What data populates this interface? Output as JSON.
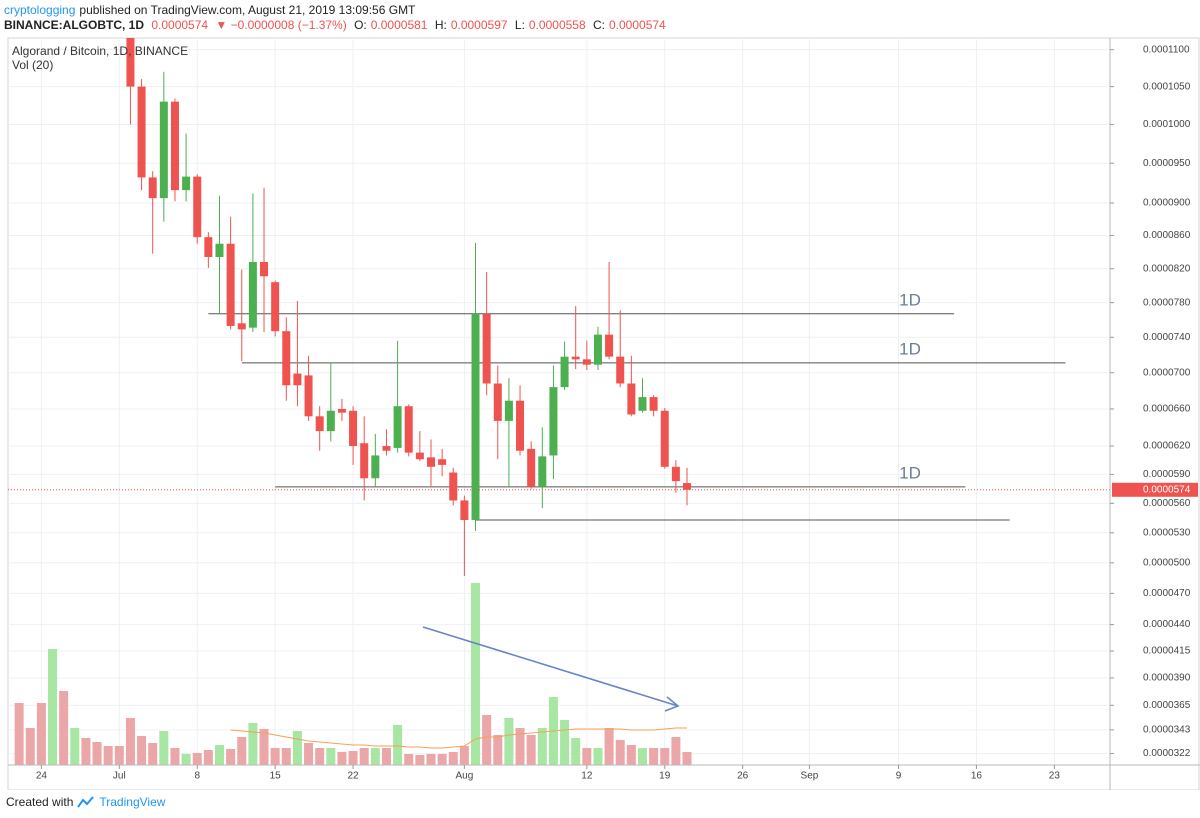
{
  "header": {
    "author": "cryptologging",
    "published": "published on TradingView.com, August 21, 2019 13:09:56 GMT",
    "symbol": "BINANCE:ALGOBTC, 1D",
    "last": "0.0000574",
    "change": "▼ −0.0000008 (−1.37%)",
    "ohlc": [
      {
        "key": "O:",
        "value": "0.0000581"
      },
      {
        "key": "H:",
        "value": "0.0000597"
      },
      {
        "key": "L:",
        "value": "0.0000558"
      },
      {
        "key": "C:",
        "value": "0.0000574"
      }
    ]
  },
  "footer": {
    "text": "Created with",
    "brand": "TradingView"
  },
  "chart_data": {
    "type": "candlestick",
    "title": "Algorand / Bitcoin, 1D, BINANCE",
    "up_color": "#4caf50",
    "down_color": "#ef5350",
    "grid": true,
    "x": [
      "2019-06-22",
      "2019-06-23",
      "2019-06-24",
      "2019-06-25",
      "2019-06-26",
      "2019-06-27",
      "2019-06-28",
      "2019-06-29",
      "2019-06-30",
      "2019-07-01",
      "2019-07-02",
      "2019-07-03",
      "2019-07-04",
      "2019-07-05",
      "2019-07-06",
      "2019-07-07",
      "2019-07-08",
      "2019-07-09",
      "2019-07-10",
      "2019-07-11",
      "2019-07-12",
      "2019-07-13",
      "2019-07-14",
      "2019-07-15",
      "2019-07-16",
      "2019-07-17",
      "2019-07-18",
      "2019-07-19",
      "2019-07-20",
      "2019-07-21",
      "2019-07-22",
      "2019-07-23",
      "2019-07-24",
      "2019-07-25",
      "2019-07-26",
      "2019-07-27",
      "2019-07-28",
      "2019-07-29",
      "2019-07-30",
      "2019-07-31",
      "2019-08-01",
      "2019-08-02",
      "2019-08-03",
      "2019-08-04",
      "2019-08-05",
      "2019-08-06",
      "2019-08-07",
      "2019-08-08",
      "2019-08-09",
      "2019-08-10",
      "2019-08-11",
      "2019-08-12",
      "2019-08-13",
      "2019-08-14",
      "2019-08-15",
      "2019-08-16",
      "2019-08-17",
      "2019-08-18",
      "2019-08-19",
      "2019-08-20",
      "2019-08-21"
    ],
    "open": [
      null,
      null,
      null,
      null,
      null,
      null,
      null,
      null,
      null,
      null,
      0.0001145,
      0.000105,
      9.32e-05,
      9.06e-05,
      0.000103,
      9.16e-05,
      9.33e-05,
      8.58e-05,
      8.34e-05,
      8.5e-05,
      7.56e-05,
      7.51e-05,
      8.28e-05,
      8.04e-05,
      7.47e-05,
      6.99e-05,
      6.97e-05,
      6.52e-05,
      6.36e-05,
      6.6e-05,
      6.58e-05,
      6.23e-05,
      5.86e-05,
      6.2e-05,
      6.18e-05,
      6.63e-05,
      6.13e-05,
      6.08e-05,
      6.06e-05,
      5.92e-05,
      5.63e-05,
      5.43e-05,
      7.67e-05,
      6.88e-05,
      6.47e-05,
      6.69e-05,
      6.17e-05,
      5.77e-05,
      6.1e-05,
      6.84e-05,
      7.18e-05,
      7.15e-05,
      7.09e-05,
      7.43e-05,
      7.18e-05,
      6.88e-05,
      6.58e-05,
      6.73e-05,
      6.58e-05,
      5.98e-05,
      5.81e-05
    ],
    "high": [
      null,
      null,
      null,
      null,
      null,
      null,
      null,
      null,
      null,
      null,
      0.000116,
      0.000106,
      9.4e-05,
      0.000107,
      0.0001034,
      9.88e-05,
      9.36e-05,
      8.64e-05,
      9.09e-05,
      8.83e-05,
      8.19e-05,
      9.12e-05,
      9.19e-05,
      8.06e-05,
      7.63e-05,
      7.82e-05,
      7.19e-05,
      6.63e-05,
      7.11e-05,
      6.71e-05,
      6.63e-05,
      6.52e-05,
      6.33e-05,
      6.38e-05,
      7.36e-05,
      6.65e-05,
      6.36e-05,
      6.27e-05,
      6.17e-05,
      5.97e-05,
      5.68e-05,
      8.51e-05,
      8.16e-05,
      7.08e-05,
      6.94e-05,
      6.86e-05,
      6.25e-05,
      6.4e-05,
      7.08e-05,
      7.35e-05,
      7.76e-05,
      7.36e-05,
      7.52e-05,
      8.28e-05,
      7.71e-05,
      7.19e-05,
      6.94e-05,
      6.75e-05,
      6.61e-05,
      6.05e-05,
      5.97e-05
    ],
    "low": [
      null,
      null,
      null,
      null,
      null,
      null,
      null,
      null,
      null,
      null,
      0.0001,
      9.16e-05,
      8.38e-05,
      8.77e-05,
      9.02e-05,
      9.02e-05,
      8.5e-05,
      8.21e-05,
      7.67e-05,
      7.49e-05,
      7.13e-05,
      7.46e-05,
      7.46e-05,
      7.41e-05,
      6.69e-05,
      6.63e-05,
      6.47e-05,
      6.15e-05,
      6.25e-05,
      6.47e-05,
      6e-05,
      5.63e-05,
      5.77e-05,
      6.1e-05,
      6.13e-05,
      6.09e-05,
      6.04e-05,
      5.78e-05,
      5.88e-05,
      5.58e-05,
      4.87e-05,
      5.32e-05,
      6.75e-05,
      6.06e-05,
      5.77e-05,
      6.1e-05,
      5.75e-05,
      5.55e-05,
      5.85e-05,
      6.81e-05,
      7.04e-05,
      7.03e-05,
      7.03e-05,
      7.15e-05,
      6.84e-05,
      6.52e-05,
      6.56e-05,
      6.52e-05,
      5.96e-05,
      5.71e-05,
      5.58e-05
    ],
    "close": [
      null,
      null,
      null,
      null,
      null,
      null,
      null,
      null,
      null,
      null,
      0.000105,
      9.32e-05,
      9.06e-05,
      0.000103,
      9.16e-05,
      9.33e-05,
      8.58e-05,
      8.34e-05,
      8.5e-05,
      7.53e-05,
      7.49e-05,
      8.28e-05,
      8.11e-05,
      7.47e-05,
      6.86e-05,
      6.86e-05,
      6.52e-05,
      6.36e-05,
      6.58e-05,
      6.56e-05,
      6.2e-05,
      5.86e-05,
      6.1e-05,
      6.15e-05,
      6.63e-05,
      6.13e-05,
      6.06e-05,
      5.98e-05,
      6e-05,
      5.63e-05,
      5.43e-05,
      7.67e-05,
      6.88e-05,
      6.47e-05,
      6.69e-05,
      6.15e-05,
      5.77e-05,
      6.09e-05,
      6.84e-05,
      7.18e-05,
      7.15e-05,
      7.09e-05,
      7.43e-05,
      7.18e-05,
      6.88e-05,
      6.54e-05,
      6.73e-05,
      6.58e-05,
      5.98e-05,
      5.83e-05,
      5.74e-05
    ],
    "volume": {
      "name": "Vol (20)",
      "ma_color": "#f5a05a",
      "values": [
        62,
        37,
        62,
        116,
        74,
        37,
        27,
        23,
        19,
        19,
        47,
        29,
        22,
        34,
        17,
        11,
        12,
        15,
        20,
        16,
        28,
        42,
        36,
        17,
        17,
        34,
        22,
        17,
        17,
        13,
        14,
        17,
        17,
        17,
        40,
        11,
        10,
        11,
        11,
        13,
        19,
        182,
        50,
        30,
        47,
        37,
        30,
        37,
        68,
        45,
        27,
        17,
        17,
        37,
        25,
        20,
        17,
        17,
        17,
        28,
        13
      ],
      "colors": [
        "#eba7a7",
        "#eba7a7",
        "#eba7a7",
        "#a7e6a3",
        "#eba7a7",
        "#a7e6a3",
        "#eba7a7",
        "#eba7a7",
        "#eba7a7",
        "#eba7a7",
        "#eba7a7",
        "#eba7a7",
        "#eba7a7",
        "#a7e6a3",
        "#eba7a7",
        "#a7e6a3",
        "#eba7a7",
        "#eba7a7",
        "#a7e6a3",
        "#eba7a7",
        "#eba7a7",
        "#a7e6a3",
        "#eba7a7",
        "#eba7a7",
        "#eba7a7",
        "#a7e6a3",
        "#eba7a7",
        "#eba7a7",
        "#a7e6a3",
        "#eba7a7",
        "#eba7a7",
        "#eba7a7",
        "#a7e6a3",
        "#eba7a7",
        "#a7e6a3",
        "#eba7a7",
        "#eba7a7",
        "#eba7a7",
        "#eba7a7",
        "#eba7a7",
        "#eba7a7",
        "#a7e6a3",
        "#eba7a7",
        "#eba7a7",
        "#a7e6a3",
        "#eba7a7",
        "#eba7a7",
        "#a7e6a3",
        "#a7e6a3",
        "#a7e6a3",
        "#a7e6a3",
        "#eba7a7",
        "#a7e6a3",
        "#eba7a7",
        "#eba7a7",
        "#eba7a7",
        "#a7e6a3",
        "#eba7a7",
        "#eba7a7",
        "#eba7a7",
        "#eba7a7"
      ],
      "ma": [
        null,
        null,
        null,
        null,
        null,
        null,
        null,
        null,
        null,
        null,
        null,
        null,
        null,
        null,
        null,
        null,
        null,
        null,
        null,
        35,
        34,
        33,
        32,
        30,
        28,
        26,
        24,
        23,
        22,
        21,
        20,
        20,
        19,
        19,
        19,
        18,
        18,
        17,
        17,
        18,
        19,
        26,
        28,
        28,
        30,
        31,
        32,
        33,
        34,
        35,
        36,
        36,
        36,
        36,
        36,
        35,
        35,
        35,
        36,
        37,
        37
      ]
    },
    "levels": [
      {
        "value": 7.67e-05,
        "label": "1D",
        "x": [
          "2019-07-09",
          "2019-09-14"
        ]
      },
      {
        "value": 7.11e-05,
        "label": "1D",
        "x": [
          "2019-07-12",
          "2019-09-24"
        ]
      },
      {
        "value": 5.77e-05,
        "label": "1D",
        "x": [
          "2019-07-15",
          "2019-09-15"
        ]
      },
      {
        "value": 5.43e-05,
        "x": [
          "2019-08-02",
          "2019-09-19"
        ]
      }
    ],
    "level_color": "#555555",
    "last_price": {
      "value": 5.74e-05,
      "label": "0.0000574"
    },
    "xlim": [
      "2019-06-21",
      "2019-09-28"
    ],
    "xticks": [
      {
        "value": "2019-06-24",
        "label": "24"
      },
      {
        "value": "2019-07-01",
        "label": "Jul"
      },
      {
        "value": "2019-07-08",
        "label": "8"
      },
      {
        "value": "2019-07-15",
        "label": "15"
      },
      {
        "value": "2019-07-22",
        "label": "22"
      },
      {
        "value": "2019-08-01",
        "label": "Aug"
      },
      {
        "value": "2019-08-12",
        "label": "12"
      },
      {
        "value": "2019-08-19",
        "label": "19"
      },
      {
        "value": "2019-08-26",
        "label": "26"
      },
      {
        "value": "2019-09-01",
        "label": "Sep"
      },
      {
        "value": "2019-09-09",
        "label": "9"
      },
      {
        "value": "2019-09-16",
        "label": "16"
      },
      {
        "value": "2019-09-23",
        "label": "23"
      }
    ],
    "ylim": [
      3.12e-05,
      0.0001116
    ],
    "yticks": [
      {
        "value": 0.00011,
        "label": "0.0001100"
      },
      {
        "value": 0.000105,
        "label": "0.0001050"
      },
      {
        "value": 0.0001,
        "label": "0.0001000"
      },
      {
        "value": 9.5e-05,
        "label": "0.0000950"
      },
      {
        "value": 9e-05,
        "label": "0.0000900"
      },
      {
        "value": 8.6e-05,
        "label": "0.0000860"
      },
      {
        "value": 8.2e-05,
        "label": "0.0000820"
      },
      {
        "value": 7.8e-05,
        "label": "0.0000780"
      },
      {
        "value": 7.4e-05,
        "label": "0.0000740"
      },
      {
        "value": 7e-05,
        "label": "0.0000700"
      },
      {
        "value": 6.6e-05,
        "label": "0.0000660"
      },
      {
        "value": 6.2e-05,
        "label": "0.0000620"
      },
      {
        "value": 5.9e-05,
        "label": "0.0000590"
      },
      {
        "value": 5.6e-05,
        "label": "0.0000560"
      },
      {
        "value": 5.3e-05,
        "label": "0.0000530"
      },
      {
        "value": 5e-05,
        "label": "0.0000500"
      },
      {
        "value": 4.7e-05,
        "label": "0.0000470"
      },
      {
        "value": 4.4e-05,
        "label": "0.0000440"
      },
      {
        "value": 4.15e-05,
        "label": "0.0000415"
      },
      {
        "value": 3.9e-05,
        "label": "0.0000390"
      },
      {
        "value": 3.65e-05,
        "label": "0.0000365"
      },
      {
        "value": 3.43e-05,
        "label": "0.0000343"
      },
      {
        "value": 3.22e-05,
        "label": "0.0000322"
      }
    ]
  }
}
